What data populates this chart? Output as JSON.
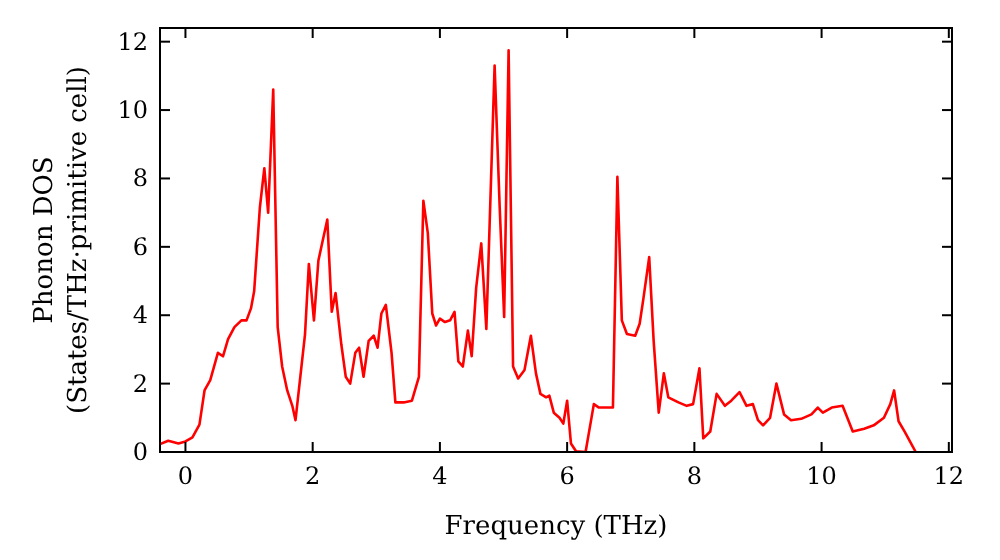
{
  "chart_data": {
    "type": "line",
    "xlabel": "Frequency (THz)",
    "ylabel": "Phonon DOS\n(States/THz·primitive cell)",
    "xlim": [
      -0.4,
      12.05
    ],
    "ylim": [
      0,
      12.4
    ],
    "xticks": [
      0,
      2,
      4,
      6,
      8,
      10,
      12
    ],
    "yticks": [
      0,
      2,
      4,
      6,
      8,
      10,
      12
    ],
    "grid": false,
    "marker": "none",
    "line_style": "solid",
    "series": [
      {
        "color": "#ff0000",
        "x": [
          -0.4,
          -0.27,
          -0.11,
          0,
          0.11,
          0.22,
          0.3,
          0.39,
          0.51,
          0.59,
          0.67,
          0.77,
          0.88,
          0.96,
          1.03,
          1.08,
          1.17,
          1.24,
          1.3,
          1.38,
          1.45,
          1.52,
          1.6,
          1.68,
          1.73,
          1.8,
          1.88,
          1.94,
          2.02,
          2.09,
          2.23,
          2.3,
          2.36,
          2.45,
          2.52,
          2.59,
          2.67,
          2.73,
          2.8,
          2.88,
          2.96,
          3.02,
          3.08,
          3.15,
          3.24,
          3.3,
          3.43,
          3.56,
          3.67,
          3.74,
          3.81,
          3.88,
          3.94,
          4.0,
          4.08,
          4.16,
          4.23,
          4.29,
          4.36,
          4.44,
          4.5,
          4.57,
          4.65,
          4.73,
          4.86,
          4.94,
          5.01,
          5.08,
          5.15,
          5.23,
          5.33,
          5.43,
          5.51,
          5.58,
          5.67,
          5.72,
          5.79,
          5.88,
          5.94,
          6.0,
          6.06,
          6.14,
          6.29,
          6.42,
          6.5,
          6.72,
          6.79,
          6.86,
          6.94,
          7.07,
          7.14,
          7.2,
          7.29,
          7.36,
          7.44,
          7.52,
          7.59,
          7.75,
          7.88,
          7.98,
          8.08,
          8.14,
          8.25,
          8.35,
          8.48,
          8.58,
          8.71,
          8.82,
          8.92,
          9.0,
          9.08,
          9.19,
          9.29,
          9.41,
          9.52,
          9.68,
          9.84,
          9.94,
          10.02,
          10.16,
          10.33,
          10.49,
          10.67,
          10.82,
          10.98,
          11.08,
          11.14,
          11.21,
          11.31,
          11.48
        ],
        "values": [
          0.23,
          0.33,
          0.25,
          0.31,
          0.43,
          0.8,
          1.8,
          2.1,
          2.9,
          2.8,
          3.3,
          3.65,
          3.85,
          3.85,
          4.2,
          4.7,
          7.15,
          8.3,
          7.0,
          10.6,
          3.65,
          2.5,
          1.8,
          1.35,
          0.93,
          2.1,
          3.45,
          5.5,
          3.85,
          5.6,
          6.8,
          4.1,
          4.65,
          3.15,
          2.2,
          2.0,
          2.9,
          3.05,
          2.2,
          3.25,
          3.4,
          3.05,
          4.05,
          4.3,
          2.9,
          1.45,
          1.45,
          1.5,
          2.2,
          7.35,
          6.4,
          4.05,
          3.7,
          3.9,
          3.8,
          3.85,
          4.1,
          2.65,
          2.5,
          3.55,
          2.8,
          4.8,
          6.1,
          3.6,
          11.3,
          7.15,
          3.95,
          11.75,
          2.5,
          2.15,
          2.4,
          3.4,
          2.3,
          1.7,
          1.6,
          1.65,
          1.15,
          1.0,
          0.83,
          1.5,
          0.25,
          0.02,
          0,
          1.4,
          1.3,
          1.3,
          8.05,
          3.85,
          3.45,
          3.4,
          3.75,
          4.5,
          5.7,
          3.25,
          1.15,
          2.3,
          1.6,
          1.45,
          1.35,
          1.4,
          2.45,
          0.4,
          0.6,
          1.7,
          1.35,
          1.5,
          1.75,
          1.35,
          1.4,
          0.93,
          0.78,
          1.0,
          2.0,
          1.1,
          0.93,
          0.97,
          1.1,
          1.3,
          1.15,
          1.3,
          1.35,
          0.6,
          0.68,
          0.78,
          1.0,
          1.4,
          1.8,
          0.9,
          0.58,
          0
        ]
      }
    ]
  }
}
